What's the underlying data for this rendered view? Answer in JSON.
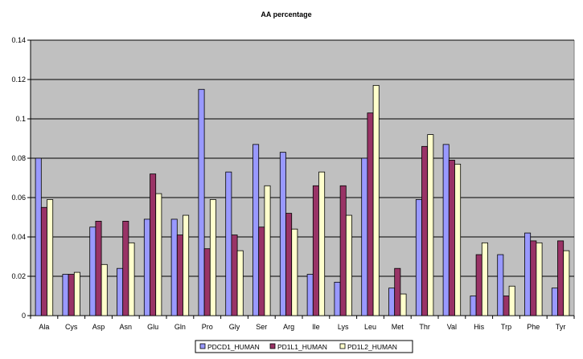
{
  "chart_data": {
    "type": "bar",
    "title": "AA percentage",
    "xlabel": "",
    "ylabel": "",
    "ylim": [
      0,
      0.14
    ],
    "yticks": [
      "0",
      "0.02",
      "0.04",
      "0.06",
      "0.08",
      "0.1",
      "0.12",
      "0.14"
    ],
    "ytick_values": [
      0,
      0.02,
      0.04,
      0.06,
      0.08,
      0.1,
      0.12,
      0.14
    ],
    "grid": true,
    "legend_position": "bottom",
    "categories": [
      "Ala",
      "Cys",
      "Asp",
      "Asn",
      "Glu",
      "Gln",
      "Pro",
      "Gly",
      "Ser",
      "Arg",
      "Ile",
      "Lys",
      "Leu",
      "Met",
      "Thr",
      "Val",
      "His",
      "Trp",
      "Phe",
      "Tyr"
    ],
    "series": [
      {
        "name": "PDCD1_HUMAN",
        "color": "#9999ff",
        "values": [
          0.08,
          0.021,
          0.045,
          0.024,
          0.049,
          0.049,
          0.115,
          0.073,
          0.087,
          0.083,
          0.021,
          0.017,
          0.08,
          0.014,
          0.059,
          0.087,
          0.01,
          0.031,
          0.042,
          0.014
        ]
      },
      {
        "name": "PD1L1_HUMAN",
        "color": "#993366",
        "values": [
          0.055,
          0.021,
          0.048,
          0.048,
          0.072,
          0.041,
          0.034,
          0.041,
          0.045,
          0.052,
          0.066,
          0.066,
          0.103,
          0.024,
          0.086,
          0.079,
          0.031,
          0.01,
          0.038,
          0.038
        ]
      },
      {
        "name": "PD1L2_HUMAN",
        "color": "#ffffcc",
        "values": [
          0.059,
          0.022,
          0.026,
          0.037,
          0.062,
          0.051,
          0.059,
          0.033,
          0.066,
          0.044,
          0.073,
          0.051,
          0.117,
          0.011,
          0.092,
          0.077,
          0.037,
          0.015,
          0.037,
          0.033
        ]
      }
    ]
  },
  "colors": {
    "plot_background": "#c0c0c0",
    "gridline": "#000000",
    "bar_outline": "#000000"
  }
}
